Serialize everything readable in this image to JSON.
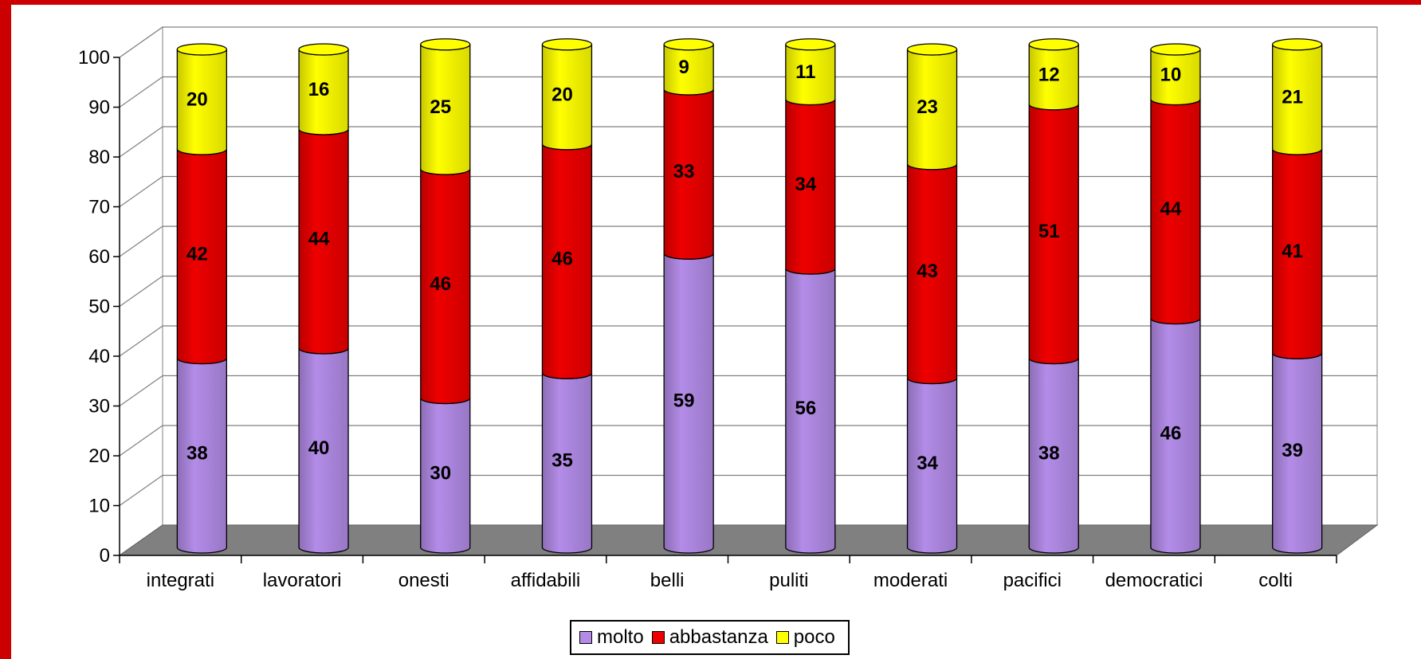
{
  "chart_data": {
    "type": "bar",
    "stacked": true,
    "categories": [
      "integrati",
      "lavoratori",
      "onesti",
      "affidabili",
      "belli",
      "puliti",
      "moderati",
      "pacifici",
      "democratici",
      "colti"
    ],
    "series": [
      {
        "name": "molto",
        "color": "#B38CE8",
        "values": [
          38,
          40,
          30,
          35,
          59,
          56,
          34,
          38,
          46,
          39
        ]
      },
      {
        "name": "abbastanza",
        "color": "#EE0000",
        "values": [
          42,
          44,
          46,
          46,
          33,
          34,
          43,
          51,
          44,
          41
        ]
      },
      {
        "name": "poco",
        "color": "#FFFF00",
        "values": [
          20,
          16,
          25,
          20,
          9,
          11,
          23,
          12,
          10,
          21
        ]
      }
    ],
    "yticks": [
      0,
      10,
      20,
      30,
      40,
      50,
      60,
      70,
      80,
      90,
      100
    ],
    "ylim": [
      0,
      100
    ],
    "grid": true,
    "legend_position": "bottom",
    "frame_color": "#CC0000"
  }
}
